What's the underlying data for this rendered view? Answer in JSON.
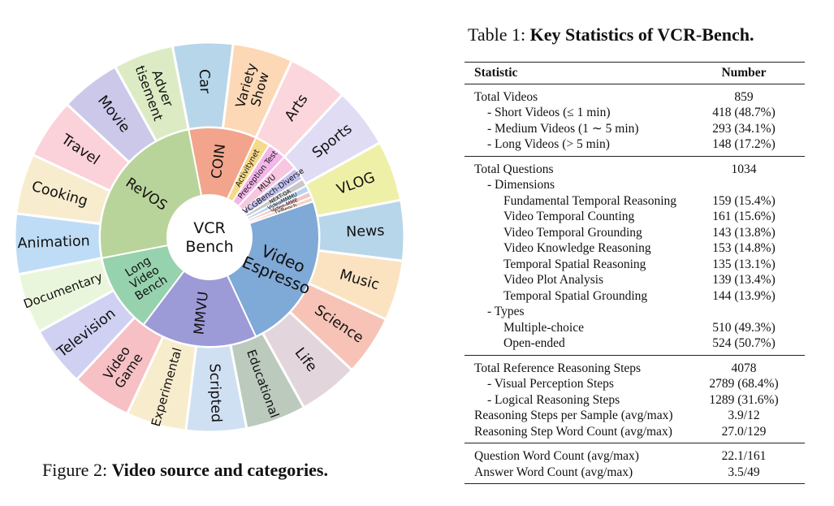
{
  "figure": {
    "label": "Figure 2:",
    "title": "Video source and categories.",
    "center_line1": "VCR",
    "center_line2": "Bench",
    "inner": [
      {
        "text": "COIN",
        "color": "#f2a58c",
        "span": 36
      },
      {
        "text": "Activitynet",
        "color": "#f6d98a",
        "span": 8
      },
      {
        "text": "Preception Test",
        "color": "#f3b6ea",
        "span": 10
      },
      {
        "text": "MLVU",
        "color": "#f7c6e0",
        "span": 8
      },
      {
        "text": "VCGBench-Diverse",
        "color": "#c5c2f0",
        "span": 7
      },
      {
        "text": "NEXT-QA",
        "color": "#c8c8c8",
        "span": 4
      },
      {
        "text": "VideoMMMU",
        "color": "#b8d4f0",
        "span": 3.5
      },
      {
        "text": "Video-MME",
        "color": "#f3c3c3",
        "span": 3
      },
      {
        "text": "TVBench",
        "color": "#f5d3c0",
        "span": 2.5
      },
      {
        "text": "Video Espresso",
        "color": "#7fa9d6",
        "span": 84
      },
      {
        "text": "MMVU",
        "color": "#9d9ad8",
        "span": 62
      },
      {
        "text": "Long Video Bench",
        "color": "#96d2ad",
        "span": 42
      },
      {
        "text": "ReVOS",
        "color": "#b9d49a",
        "span": 90
      }
    ],
    "outer": [
      {
        "text": "Car",
        "color": "#b7d6ea"
      },
      {
        "text": "Variety Show",
        "color": "#fcd8b6"
      },
      {
        "text": "Arts",
        "color": "#fbd6dc"
      },
      {
        "text": "Sports",
        "color": "#e0dcf4"
      },
      {
        "text": "VLOG",
        "color": "#eef0a8"
      },
      {
        "text": "News",
        "color": "#b7d6ea"
      },
      {
        "text": "Music",
        "color": "#fbe3c2"
      },
      {
        "text": "Science",
        "color": "#f6c3b6"
      },
      {
        "text": "Life",
        "color": "#e2d6dc"
      },
      {
        "text": "Educational",
        "color": "#bccabe"
      },
      {
        "text": "Scripted",
        "color": "#cfe0f2"
      },
      {
        "text": "Experimental",
        "color": "#f7eccc"
      },
      {
        "text": "Video Game",
        "color": "#f6c0c5"
      },
      {
        "text": "Television",
        "color": "#cfd0f2"
      },
      {
        "text": "Documentary",
        "color": "#eaf6dc"
      },
      {
        "text": "Animation",
        "color": "#bfdcf6"
      },
      {
        "text": "Cooking",
        "color": "#f7ecce"
      },
      {
        "text": "Travel",
        "color": "#fbd1da"
      },
      {
        "text": "Movie",
        "color": "#cbc8ea"
      },
      {
        "text": "Adver tisement",
        "color": "#dcebc4"
      }
    ]
  },
  "table": {
    "label": "Table 1:",
    "title": "Key Statistics of VCR-Bench.",
    "header": {
      "stat": "Statistic",
      "num": "Number"
    },
    "groups": [
      [
        {
          "text": "Total Videos",
          "value": "859",
          "level": 0
        },
        {
          "text": "- Short Videos (≤ 1 min)",
          "value": "418 (48.7%)",
          "level": 1
        },
        {
          "text": "- Medium Videos (1 ∼ 5 min)",
          "value": "293 (34.1%)",
          "level": 1
        },
        {
          "text": "- Long Videos (> 5 min)",
          "value": "148 (17.2%)",
          "level": 1
        }
      ],
      [
        {
          "text": "Total Questions",
          "value": "1034",
          "level": 0
        },
        {
          "text": "- Dimensions",
          "value": "",
          "level": 1
        },
        {
          "text": "Fundamental Temporal Reasoning",
          "value": "159 (15.4%)",
          "level": 2
        },
        {
          "text": "Video Temporal Counting",
          "value": "161 (15.6%)",
          "level": 2
        },
        {
          "text": "Video Temporal Grounding",
          "value": "143 (13.8%)",
          "level": 2
        },
        {
          "text": "Video Knowledge Reasoning",
          "value": "153 (14.8%)",
          "level": 2
        },
        {
          "text": "Temporal Spatial Reasoning",
          "value": "135 (13.1%)",
          "level": 2
        },
        {
          "text": "Video Plot Analysis",
          "value": "139 (13.4%)",
          "level": 2
        },
        {
          "text": "Temporal Spatial Grounding",
          "value": "144 (13.9%)",
          "level": 2
        },
        {
          "text": "- Types",
          "value": "",
          "level": 1
        },
        {
          "text": "Multiple-choice",
          "value": "510 (49.3%)",
          "level": 2
        },
        {
          "text": "Open-ended",
          "value": "524 (50.7%)",
          "level": 2
        }
      ],
      [
        {
          "text": "Total Reference Reasoning Steps",
          "value": "4078",
          "level": 0
        },
        {
          "text": "- Visual Perception Steps",
          "value": "2789 (68.4%)",
          "level": 1
        },
        {
          "text": "- Logical Reasoning Steps",
          "value": "1289 (31.6%)",
          "level": 1
        },
        {
          "text": "Reasoning Steps per Sample (avg/max)",
          "value": "3.9/12",
          "level": 0
        },
        {
          "text": "Reasoning Step Word Count (avg/max)",
          "value": "27.0/129",
          "level": 0
        }
      ],
      [
        {
          "text": "Question Word Count (avg/max)",
          "value": "22.1/161",
          "level": 0
        },
        {
          "text": "Answer Word Count (avg/max)",
          "value": "3.5/49",
          "level": 0
        }
      ]
    ]
  }
}
